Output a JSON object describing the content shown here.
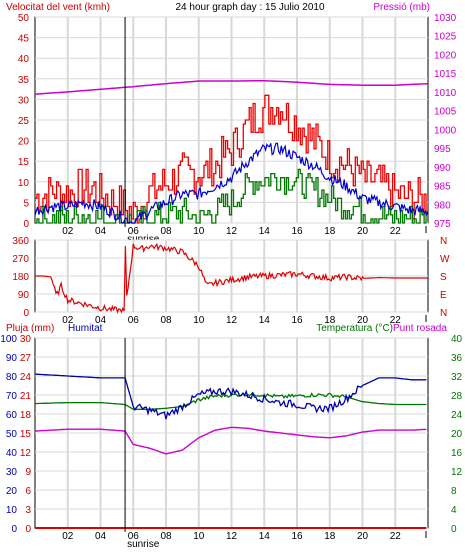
{
  "header": {
    "left_title": "Velocitat del vent (kmh)",
    "center_title": "24 hour graph day : 15 Julio 2010",
    "right_title": "Pressió (mb)"
  },
  "colors": {
    "wind_gust": "#ee0000",
    "wind_avg": "#0000cc",
    "wind_min": "#007700",
    "pressure": "#cc00cc",
    "direction": "#dd0000",
    "humidity": "#0000aa",
    "temperature": "#007700",
    "dewpoint": "#cc00cc",
    "rain": "#dd0000",
    "grid": "#d8d8d8"
  },
  "x_axis": {
    "ticks": [
      "02",
      "04",
      "06",
      "08",
      "10",
      "12",
      "14",
      "16",
      "18",
      "20",
      "22"
    ],
    "sunrise_label": "sunrise",
    "start_hour": 0,
    "end_hour": 24
  },
  "chart_data": [
    {
      "type": "line",
      "panel": "wind",
      "ylabel_left": "Velocitat del vent (kmh)",
      "ylabel_right": "Pressió (mb)",
      "ylim_left": [
        0,
        50
      ],
      "ylim_right": [
        975,
        1030
      ],
      "left_ticks": [
        0,
        5,
        10,
        15,
        20,
        25,
        30,
        35,
        40,
        45,
        50
      ],
      "right_ticks": [
        975,
        980,
        985,
        990,
        995,
        1000,
        1005,
        1010,
        1015,
        1020,
        1025,
        1030
      ],
      "series": [
        {
          "axis": "left",
          "key": "gust",
          "x": [
            0,
            1,
            2,
            3,
            4,
            5,
            6,
            7,
            8,
            9,
            10,
            11,
            12,
            13,
            14,
            15,
            16,
            17,
            18,
            19,
            20,
            21,
            22,
            23,
            24
          ],
          "values": [
            6,
            8,
            7,
            9,
            7,
            5,
            2,
            7,
            10,
            12,
            12,
            14,
            18,
            24,
            28,
            28,
            24,
            20,
            16,
            14,
            11,
            10,
            7,
            6,
            5
          ]
        },
        {
          "axis": "left",
          "key": "avg",
          "x": [
            0,
            1,
            2,
            3,
            4,
            5,
            6,
            7,
            8,
            9,
            10,
            11,
            12,
            13,
            14,
            15,
            16,
            17,
            18,
            19,
            20,
            21,
            22,
            23,
            24
          ],
          "values": [
            3,
            4,
            4,
            5,
            4,
            2,
            0,
            3,
            5,
            7,
            7,
            9,
            11,
            15,
            18,
            18,
            16,
            14,
            11,
            9,
            6,
            5,
            4,
            3,
            3
          ]
        },
        {
          "axis": "left",
          "key": "min",
          "x": [
            0,
            1,
            2,
            3,
            4,
            5,
            6,
            7,
            8,
            9,
            10,
            11,
            12,
            13,
            14,
            15,
            16,
            17,
            18,
            19,
            20,
            21,
            22,
            23,
            24
          ],
          "values": [
            1,
            1,
            1,
            2,
            1,
            0,
            0,
            1,
            2,
            3,
            1,
            3,
            5,
            9,
            11,
            11,
            10,
            8,
            6,
            4,
            3,
            2,
            1,
            1,
            1
          ]
        },
        {
          "axis": "right",
          "key": "pressure",
          "x": [
            0,
            2,
            4,
            6,
            8,
            10,
            12,
            14,
            16,
            18,
            20,
            22,
            24
          ],
          "values": [
            1009.4,
            1010.0,
            1010.7,
            1011.4,
            1012.2,
            1012.9,
            1012.9,
            1013.0,
            1012.6,
            1012.0,
            1011.8,
            1011.8,
            1012.2
          ]
        }
      ]
    },
    {
      "type": "line",
      "panel": "direction",
      "ylim": [
        0,
        360
      ],
      "left_ticks": [
        0,
        90,
        180,
        270,
        360
      ],
      "compass_labels": [
        "N",
        "W",
        "S",
        "E",
        "N"
      ],
      "series": [
        {
          "key": "direction",
          "x": [
            0,
            0.5,
            1,
            1.3,
            1.6,
            2,
            3,
            4,
            5,
            5.5,
            6,
            6.5,
            7,
            8,
            9,
            10,
            10.5,
            11,
            12,
            13,
            14,
            15,
            16,
            17,
            18,
            19,
            20,
            21,
            22,
            23,
            24
          ],
          "values": [
            180,
            180,
            175,
            80,
            130,
            60,
            40,
            20,
            10,
            5,
            330,
            315,
            330,
            320,
            300,
            230,
            130,
            145,
            160,
            175,
            180,
            185,
            190,
            180,
            170,
            175,
            168,
            172,
            170,
            170,
            170
          ]
        }
      ]
    },
    {
      "type": "line",
      "panel": "humidity_temp",
      "ylabel_left": "Pluja (mm)",
      "ylabel_left2": "Humitat",
      "ylabel_right": "Temperatura (°C)",
      "ylabel_right2": "Punt rosada",
      "ylim_rain": [
        0,
        30
      ],
      "ylim_humidity": [
        0,
        100
      ],
      "ylim_temp": [
        0,
        40
      ],
      "rain_ticks": [
        0,
        3,
        6,
        9,
        12,
        15,
        18,
        21,
        24,
        27,
        30
      ],
      "humidity_ticks": [
        0,
        10,
        20,
        30,
        40,
        50,
        60,
        70,
        80,
        90,
        100
      ],
      "temp_ticks": [
        0,
        4,
        8,
        12,
        16,
        20,
        24,
        28,
        32,
        36,
        40
      ],
      "series": [
        {
          "axis": "humidity",
          "key": "humidity",
          "x": [
            0,
            2,
            4,
            5.5,
            6,
            7,
            8,
            9,
            10,
            11,
            12,
            13,
            14,
            15,
            16,
            17,
            18,
            19,
            20,
            21,
            22,
            23,
            24
          ],
          "values": [
            81,
            80,
            79,
            79,
            64,
            62,
            59,
            64,
            70,
            72,
            72,
            70,
            68,
            66,
            65,
            63,
            63,
            68,
            75,
            79,
            79,
            78,
            78
          ]
        },
        {
          "axis": "temp",
          "key": "temperature",
          "x": [
            0,
            2,
            4,
            5.5,
            6,
            7,
            8,
            9,
            10,
            11,
            12,
            13,
            14,
            15,
            16,
            17,
            18,
            19,
            20,
            21,
            22,
            23,
            24
          ],
          "values": [
            26.2,
            26.4,
            26.4,
            26.0,
            25.0,
            25.0,
            25.2,
            25.6,
            27.0,
            27.8,
            28.0,
            28.2,
            28.0,
            27.6,
            27.8,
            28.0,
            28.0,
            27.6,
            26.6,
            26.2,
            26.0,
            26.0,
            26.0
          ]
        },
        {
          "axis": "temp",
          "key": "dewpoint",
          "x": [
            0,
            2,
            4,
            5.5,
            6,
            7,
            8,
            9,
            10,
            11,
            12,
            13,
            14,
            15,
            16,
            17,
            18,
            19,
            20,
            21,
            22,
            23,
            24
          ],
          "values": [
            20.4,
            20.8,
            20.8,
            20.4,
            17.6,
            16.8,
            15.6,
            16.4,
            19.0,
            20.6,
            21.2,
            21.0,
            20.4,
            20.0,
            19.6,
            19.2,
            19.0,
            19.4,
            20.2,
            20.6,
            20.6,
            20.6,
            20.8
          ]
        },
        {
          "axis": "rain",
          "key": "rain",
          "x": [
            0,
            24
          ],
          "values": [
            0,
            0
          ]
        }
      ]
    }
  ]
}
